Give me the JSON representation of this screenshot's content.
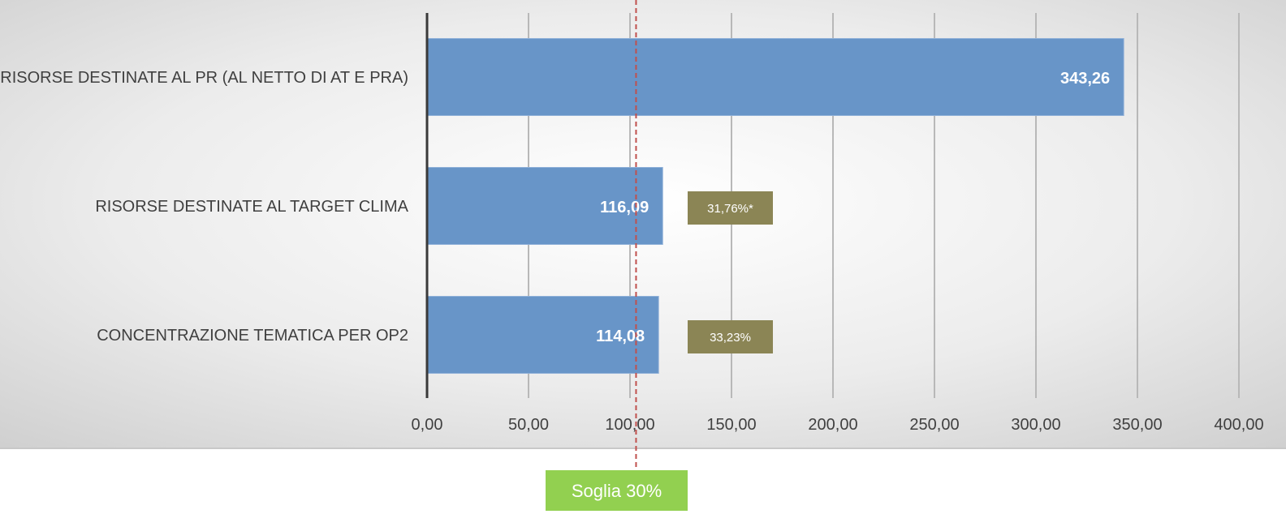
{
  "chart_data": {
    "type": "bar",
    "orientation": "horizontal",
    "categories": [
      "RISORSE DESTINATE AL PR (AL NETTO DI AT E PRA)",
      "RISORSE DESTINATE AL TARGET CLIMA",
      "CONCENTRAZIONE TEMATICA PER OP2"
    ],
    "values": [
      343.26,
      116.09,
      114.08
    ],
    "value_labels": [
      "343,26",
      "116,09",
      "114,08"
    ],
    "percent_labels": [
      "",
      "31,76%*",
      "33,23%"
    ],
    "xlim": [
      0,
      400
    ],
    "xticks": [
      0,
      50,
      100,
      150,
      200,
      250,
      300,
      350,
      400
    ],
    "xtick_labels": [
      "0,00",
      "50,00",
      "100,00",
      "150,00",
      "200,00",
      "250,00",
      "300,00",
      "350,00",
      "400,00"
    ],
    "grid": "vertical",
    "threshold": {
      "value": 102.98,
      "label": "Soglia 30%"
    },
    "title": "",
    "xlabel": "",
    "ylabel": "",
    "colors": {
      "bar": "#6895C8",
      "bar_border": "#8FB0D8",
      "percent_box": "#8B8555",
      "threshold_line": "#C0504D",
      "threshold_box": "#92D050",
      "grid": "#B8B8B8",
      "axis": "#3A3A3A"
    }
  }
}
